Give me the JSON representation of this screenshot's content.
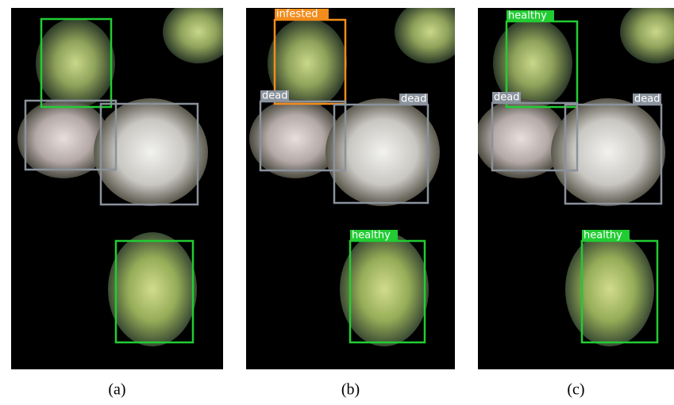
{
  "panels": [
    {
      "caption": "(a)",
      "labels": []
    },
    {
      "caption": "(b)",
      "labels": [
        "infested",
        "dead",
        "dead",
        "healthy"
      ]
    },
    {
      "caption": "(c)",
      "labels": [
        "healthy",
        "dead",
        "dead",
        "healthy"
      ]
    }
  ]
}
